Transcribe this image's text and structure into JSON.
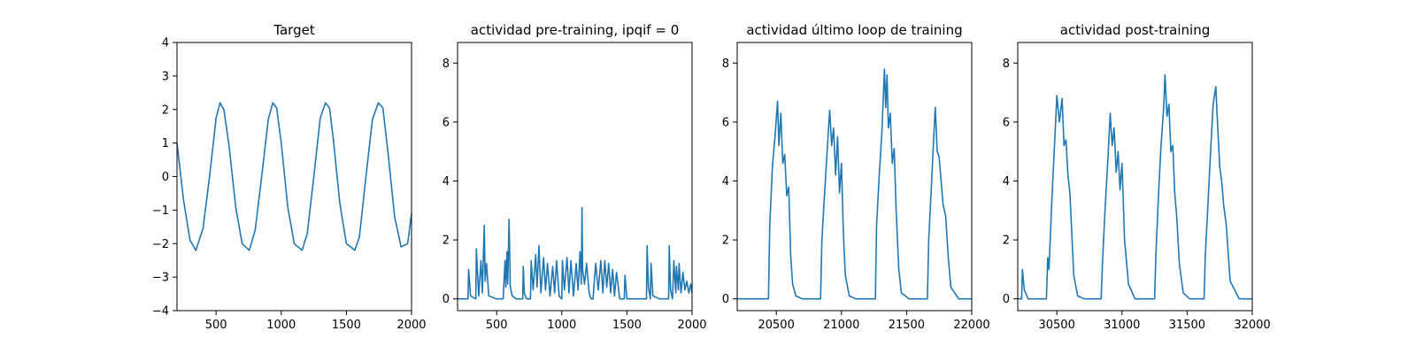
{
  "chart_data": [
    {
      "type": "line",
      "title": "Target",
      "xlim": [
        200,
        2000
      ],
      "ylim": [
        -4,
        4
      ],
      "xticks": [
        500,
        1000,
        1500,
        2000
      ],
      "xtick_labels": [
        "500",
        "1000",
        "1500",
        "2000"
      ],
      "yticks": [
        -4,
        -3,
        -2,
        -1,
        0,
        1,
        2,
        3,
        4
      ],
      "ytick_labels": [
        "−4",
        "−3",
        "−2",
        "−1",
        "0",
        "1",
        "2",
        "3",
        "4"
      ],
      "color": "#1f77b4",
      "series": [
        {
          "x": [
            200,
            250,
            300,
            345,
            400,
            450,
            500,
            530,
            560,
            600,
            650,
            700,
            755,
            800,
            850,
            900,
            935,
            965,
            1000,
            1050,
            1100,
            1160,
            1200,
            1250,
            1300,
            1340,
            1370,
            1400,
            1450,
            1500,
            1565,
            1600,
            1650,
            1700,
            1745,
            1780,
            1820,
            1870,
            1920,
            1970,
            2000
          ],
          "y": [
            1.0,
            -0.7,
            -1.9,
            -2.2,
            -1.55,
            0.0,
            1.75,
            2.2,
            2.0,
            0.9,
            -0.9,
            -2.0,
            -2.2,
            -1.6,
            0.0,
            1.7,
            2.2,
            2.05,
            1.0,
            -0.9,
            -2.0,
            -2.2,
            -1.7,
            0.0,
            1.75,
            2.2,
            2.05,
            1.1,
            -0.8,
            -2.0,
            -2.2,
            -1.8,
            0.0,
            1.7,
            2.2,
            2.05,
            0.7,
            -1.2,
            -2.1,
            -2.0,
            -1.1
          ]
        }
      ]
    },
    {
      "type": "line",
      "title": "actividad pre-training, ipqif = 0",
      "xlim": [
        200,
        2000
      ],
      "ylim": [
        -0.4,
        8.7
      ],
      "xticks": [
        500,
        1000,
        1500,
        2000
      ],
      "xtick_labels": [
        "500",
        "1000",
        "1500",
        "2000"
      ],
      "yticks": [
        0,
        2,
        4,
        6,
        8
      ],
      "ytick_labels": [
        "0",
        "2",
        "4",
        "6",
        "8"
      ],
      "color": "#1f77b4",
      "series": [
        {
          "x": [
            200,
            280,
            285,
            300,
            340,
            345,
            362,
            380,
            390,
            405,
            412,
            422,
            440,
            500,
            550,
            565,
            570,
            580,
            585,
            595,
            605,
            620,
            650,
            700,
            705,
            712,
            730,
            760,
            765,
            780,
            800,
            810,
            825,
            840,
            860,
            875,
            890,
            910,
            930,
            945,
            960,
            980,
            1000,
            1005,
            1020,
            1040,
            1055,
            1070,
            1090,
            1110,
            1125,
            1140,
            1150,
            1155,
            1160,
            1175,
            1190,
            1210,
            1225,
            1240,
            1260,
            1280,
            1300,
            1315,
            1330,
            1345,
            1360,
            1375,
            1390,
            1405,
            1420,
            1445,
            1480,
            1485,
            1500,
            1550,
            1650,
            1655,
            1665,
            1680,
            1685,
            1700,
            1750,
            1800,
            1820,
            1825,
            1835,
            1850,
            1860,
            1875,
            1880,
            1895,
            1900,
            1915,
            1930,
            1945,
            1960,
            1975,
            1990,
            2000
          ],
          "y": [
            0.0,
            0.0,
            1.0,
            0.1,
            0.0,
            1.7,
            0.1,
            1.3,
            0.2,
            2.5,
            0.6,
            1.2,
            0.1,
            0.0,
            0.0,
            1.3,
            0.4,
            1.6,
            0.5,
            2.7,
            0.4,
            0.1,
            0.0,
            0.0,
            1.1,
            0.2,
            0.0,
            0.0,
            1.3,
            0.3,
            1.5,
            0.4,
            1.8,
            0.2,
            1.4,
            0.3,
            1.2,
            0.1,
            1.1,
            0.2,
            1.3,
            0.1,
            0.0,
            1.3,
            0.3,
            1.4,
            0.2,
            1.3,
            0.1,
            1.2,
            0.3,
            1.6,
            0.5,
            3.1,
            1.0,
            0.5,
            1.2,
            0.2,
            0.0,
            0.0,
            1.2,
            0.3,
            1.3,
            0.2,
            1.3,
            0.4,
            1.2,
            0.2,
            1.0,
            0.1,
            0.9,
            0.0,
            0.0,
            0.8,
            0.0,
            0.0,
            0.0,
            1.8,
            0.4,
            0.0,
            1.2,
            0.1,
            0.0,
            0.0,
            0.0,
            1.8,
            0.3,
            0.0,
            1.3,
            0.2,
            1.1,
            0.3,
            1.2,
            0.2,
            0.9,
            0.3,
            0.6,
            0.2,
            0.5,
            0.2
          ]
        }
      ]
    },
    {
      "type": "line",
      "title": "actividad último loop de training",
      "xlim": [
        20200,
        22000
      ],
      "ylim": [
        -0.4,
        8.7
      ],
      "xticks": [
        20500,
        21000,
        21500,
        22000
      ],
      "xtick_labels": [
        "20500",
        "21000",
        "21500",
        "22000"
      ],
      "yticks": [
        0,
        2,
        4,
        6,
        8
      ],
      "ytick_labels": [
        "0",
        "2",
        "4",
        "6",
        "8"
      ],
      "color": "#1f77b4",
      "series": [
        {
          "x": [
            20200,
            20440,
            20450,
            20470,
            20490,
            20510,
            20520,
            20535,
            20550,
            20565,
            20580,
            20595,
            20610,
            20625,
            20650,
            20700,
            20800,
            20840,
            20850,
            20870,
            20890,
            20910,
            20925,
            20940,
            20955,
            20970,
            20985,
            21000,
            21015,
            21030,
            21060,
            21110,
            21220,
            21260,
            21270,
            21290,
            21310,
            21330,
            21340,
            21350,
            21360,
            21375,
            21390,
            21405,
            21420,
            21440,
            21460,
            21520,
            21660,
            21670,
            21690,
            21705,
            21720,
            21735,
            21750,
            21765,
            21780,
            21800,
            21820,
            21840,
            21900,
            22000
          ],
          "y": [
            0.0,
            0.0,
            2.5,
            4.5,
            5.5,
            6.7,
            5.2,
            6.3,
            4.6,
            4.9,
            3.5,
            3.8,
            1.5,
            0.5,
            0.1,
            0.0,
            0.0,
            0.0,
            2.0,
            3.5,
            5.0,
            6.4,
            5.2,
            5.8,
            4.2,
            5.5,
            3.6,
            4.6,
            2.2,
            0.8,
            0.1,
            0.0,
            0.0,
            0.0,
            2.5,
            4.2,
            5.6,
            7.8,
            6.5,
            7.6,
            5.8,
            6.3,
            4.6,
            5.1,
            3.0,
            1.0,
            0.2,
            0.0,
            0.0,
            2.0,
            3.8,
            5.2,
            6.5,
            5.0,
            4.8,
            4.0,
            3.2,
            2.8,
            1.4,
            0.4,
            0.0,
            0.0
          ]
        }
      ]
    },
    {
      "type": "line",
      "title": "actividad post-training",
      "xlim": [
        30200,
        32000
      ],
      "ylim": [
        -0.4,
        8.7
      ],
      "xticks": [
        30500,
        31000,
        31500,
        32000
      ],
      "xtick_labels": [
        "30500",
        "31000",
        "31500",
        "32000"
      ],
      "yticks": [
        0,
        2,
        4,
        6,
        8
      ],
      "ytick_labels": [
        "0",
        "2",
        "4",
        "6",
        "8"
      ],
      "color": "#1f77b4",
      "series": [
        {
          "x": [
            30200,
            30230,
            30235,
            30250,
            30280,
            30300,
            30420,
            30430,
            30440,
            30460,
            30480,
            30500,
            30520,
            30540,
            30555,
            30570,
            30585,
            30600,
            30615,
            30630,
            30660,
            30710,
            30840,
            30850,
            30870,
            30890,
            30910,
            30925,
            30940,
            30955,
            30970,
            30985,
            31000,
            31020,
            31050,
            31100,
            31250,
            31260,
            31280,
            31300,
            31320,
            31330,
            31345,
            31360,
            31375,
            31390,
            31405,
            31420,
            31440,
            31470,
            31520,
            31630,
            31640,
            31660,
            31680,
            31700,
            31720,
            31735,
            31750,
            31765,
            31780,
            31800,
            31830,
            31900,
            32000
          ],
          "y": [
            0.0,
            0.0,
            1.0,
            0.3,
            0.0,
            0.0,
            0.0,
            1.4,
            1.0,
            3.2,
            5.0,
            6.9,
            6.0,
            6.8,
            5.2,
            5.4,
            4.2,
            3.6,
            2.2,
            0.8,
            0.1,
            0.0,
            0.0,
            1.2,
            3.0,
            4.6,
            6.3,
            5.2,
            5.8,
            4.3,
            5.0,
            3.7,
            4.6,
            2.0,
            0.5,
            0.0,
            0.0,
            1.5,
            3.5,
            5.2,
            6.5,
            7.6,
            6.2,
            6.6,
            5.0,
            5.2,
            3.6,
            2.8,
            1.2,
            0.2,
            0.0,
            0.0,
            1.5,
            3.2,
            5.0,
            6.6,
            7.2,
            5.8,
            4.5,
            4.0,
            3.2,
            2.5,
            0.6,
            0.0,
            0.0
          ]
        }
      ]
    }
  ]
}
